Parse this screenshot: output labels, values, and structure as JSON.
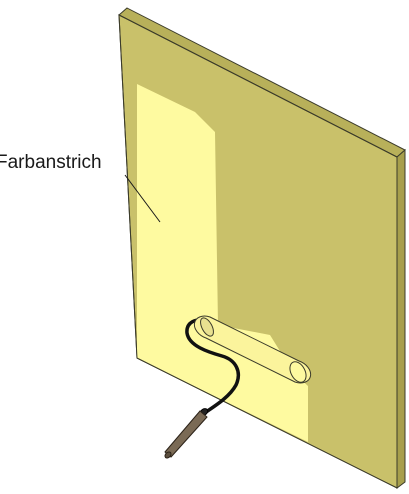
{
  "diagram": {
    "labels": {
      "paint_coat": "Farbanstrich"
    },
    "colors": {
      "board_unpainted": "#c9c16a",
      "board_painted": "#fefaa0",
      "board_top_edge": "#b8b05a",
      "board_side_edge": "#a79f4c",
      "roller_cover": "#fbf49c",
      "roller_frame": "#111111",
      "handle": "#7a6a55",
      "outline": "#3b3b2a"
    }
  }
}
